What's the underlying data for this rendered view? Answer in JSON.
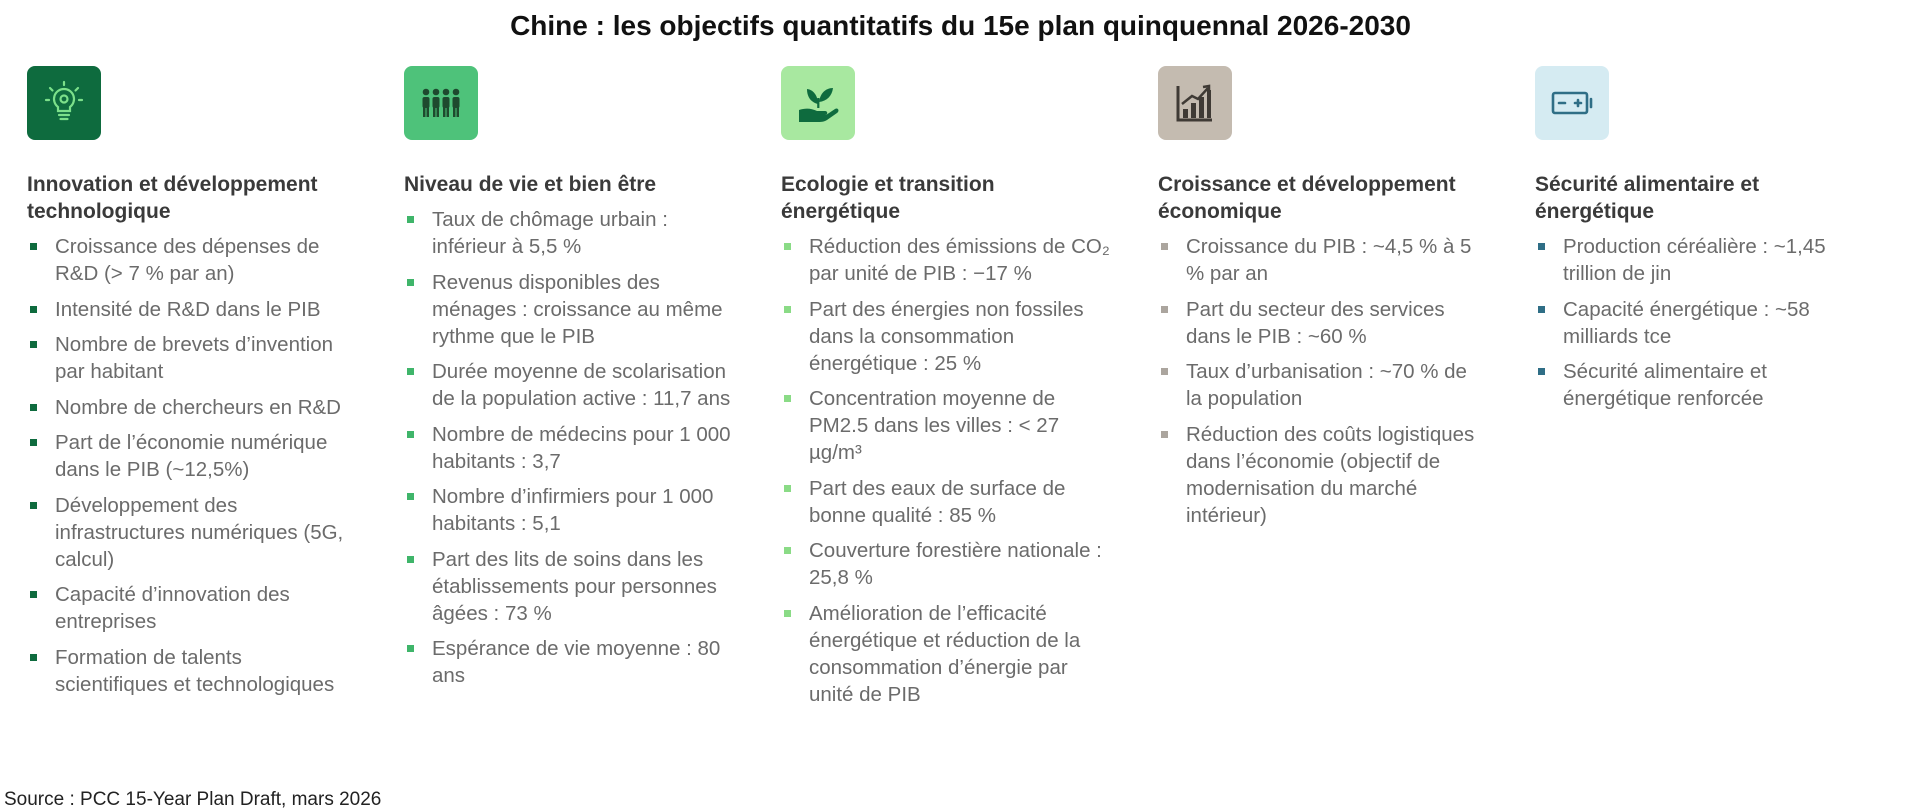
{
  "title": "Chine : les objectifs quantitatifs du 15e plan quinquennal 2026-2030",
  "columns": [
    {
      "heading": "Innovation et développement technologique",
      "icon": "lightbulb-gear-icon",
      "icon_bg": "#0E6B3E",
      "bullet_color": "#0E6B3E",
      "items": [
        "Croissance des dépenses de R&D (> 7 % par an)",
        "Intensité de R&D dans le PIB",
        "Nombre de brevets d’invention par habitant",
        "Nombre de chercheurs en R&D",
        "Part de l’économie numérique dans le PIB (~12,5%)",
        "Développement des infrastructures numériques (5G, calcul)",
        "Capacité d’innovation des entreprises",
        "Formation de talents scientifiques et technologiques"
      ]
    },
    {
      "heading": "Niveau de vie et bien être",
      "icon": "people-group-icon",
      "icon_bg": "#4EC27A",
      "bullet_color": "#3FB56A",
      "items": [
        "Taux de chômage urbain : inférieur à 5,5 %",
        "Revenus disponibles des ménages : croissance au même rythme que le PIB",
        "Durée moyenne de scolarisation de la population active : 11,7 ans",
        "Nombre de médecins pour 1 000 habitants : 3,7",
        "Nombre d’infirmiers pour 1 000 habitants : 5,1",
        "Part des lits de soins dans les établissements pour personnes âgées : 73 %",
        "Espérance de vie moyenne : 80 ans"
      ]
    },
    {
      "heading": "Ecologie et transition énergétique",
      "icon": "plant-in-hand-icon",
      "icon_bg": "#A8E8A0",
      "bullet_color": "#8ADB86",
      "items": [
        "Réduction des émissions de CO₂ par unité de PIB : −17 %",
        "Part des énergies non fossiles dans la consommation énergétique : 25 %",
        "Concentration moyenne de PM2.5 dans les villes : < 27 µg/m³",
        "Part des eaux de surface de bonne qualité : 85 %",
        "Couverture forestière nationale : 25,8 %",
        "Amélioration de l’efficacité énergétique et réduction de la consommation d’énergie par unité de PIB"
      ]
    },
    {
      "heading": "Croissance et développement économique",
      "icon": "bar-chart-growth-icon",
      "icon_bg": "#C4BBB0",
      "bullet_color": "#ABA59E",
      "items": [
        "Croissance du PIB : ~4,5 % à 5 % par an",
        "Part du secteur des services dans le PIB : ~60 %",
        "Taux d’urbanisation : ~70 % de la population",
        "Réduction des coûts logistiques dans l’économie (objectif de modernisation du marché intérieur)"
      ]
    },
    {
      "heading": "Sécurité alimentaire et énergétique",
      "icon": "battery-icon",
      "icon_bg": "#D5EBF2",
      "bullet_color": "#2F6E86",
      "items": [
        "Production céréalière : ~1,45 trillion de jin",
        "Capacité énergétique : ~58 milliards tce",
        "Sécurité alimentaire et énergétique renforcée"
      ]
    }
  ],
  "source": "Source : PCC 15-Year Plan Draft, mars 2026"
}
